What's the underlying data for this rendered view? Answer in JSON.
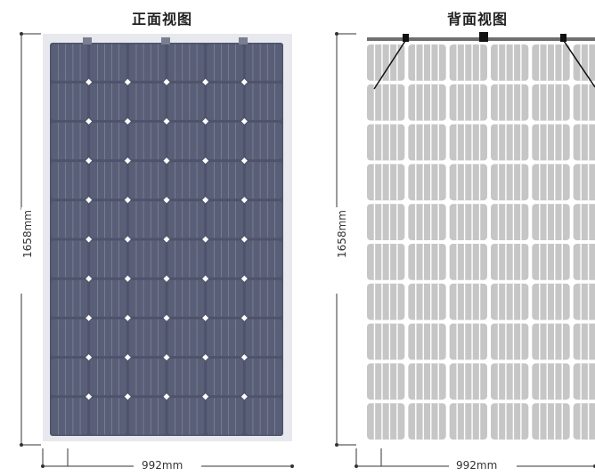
{
  "front": {
    "title": "正面视图",
    "height_label": "1658mm",
    "width_label": "992mm"
  },
  "back": {
    "title": "背面视图",
    "height_label": "1658mm",
    "width_label": "992mm"
  },
  "colors": {
    "front_cell": "#5a5f78",
    "front_frame": "#e8e9ee",
    "back_cell": "#c6c6c6",
    "back_frame": "#ffffff",
    "dimension_line": "#333333"
  }
}
